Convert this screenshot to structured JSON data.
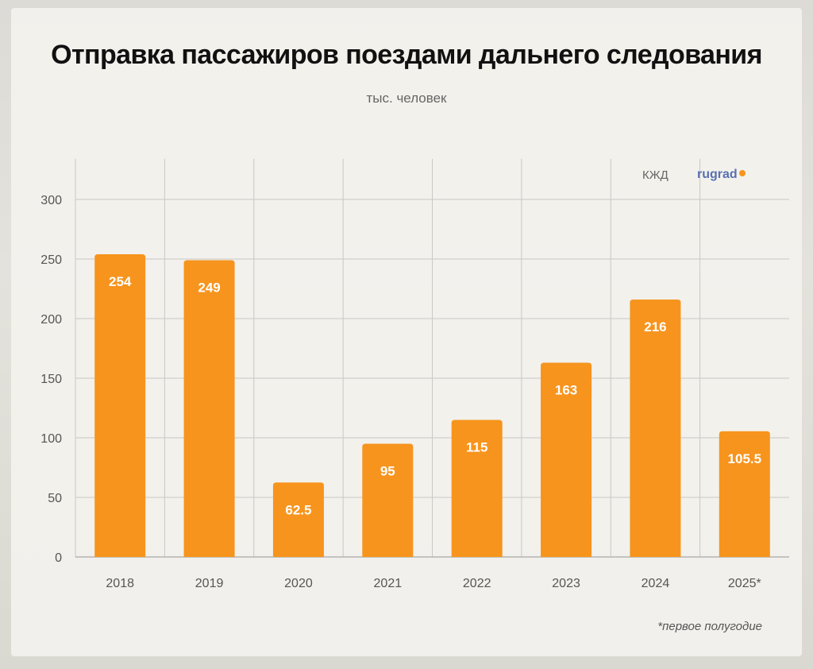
{
  "title": "Отправка пассажиров поездами дальнего следования",
  "subtitle": "тыс. человек",
  "source": "КЖД",
  "logo": "rugrad",
  "footnote": "*первое полугодие",
  "colors": {
    "bar": "#f7941d",
    "grid": "#c8c8c4"
  },
  "chart_data": {
    "type": "bar",
    "categories": [
      "2018",
      "2019",
      "2020",
      "2021",
      "2022",
      "2023",
      "2024",
      "2025*"
    ],
    "values": [
      254,
      249,
      62.5,
      95,
      115,
      163,
      216,
      105.5
    ],
    "value_labels": [
      "254",
      "249",
      "62.5",
      "95",
      "115",
      "163",
      "216",
      "105.5"
    ],
    "ylim": [
      0,
      300
    ],
    "yticks": [
      0,
      50,
      100,
      150,
      200,
      250,
      300
    ],
    "ylabel": "тыс. человек",
    "grid": true
  }
}
